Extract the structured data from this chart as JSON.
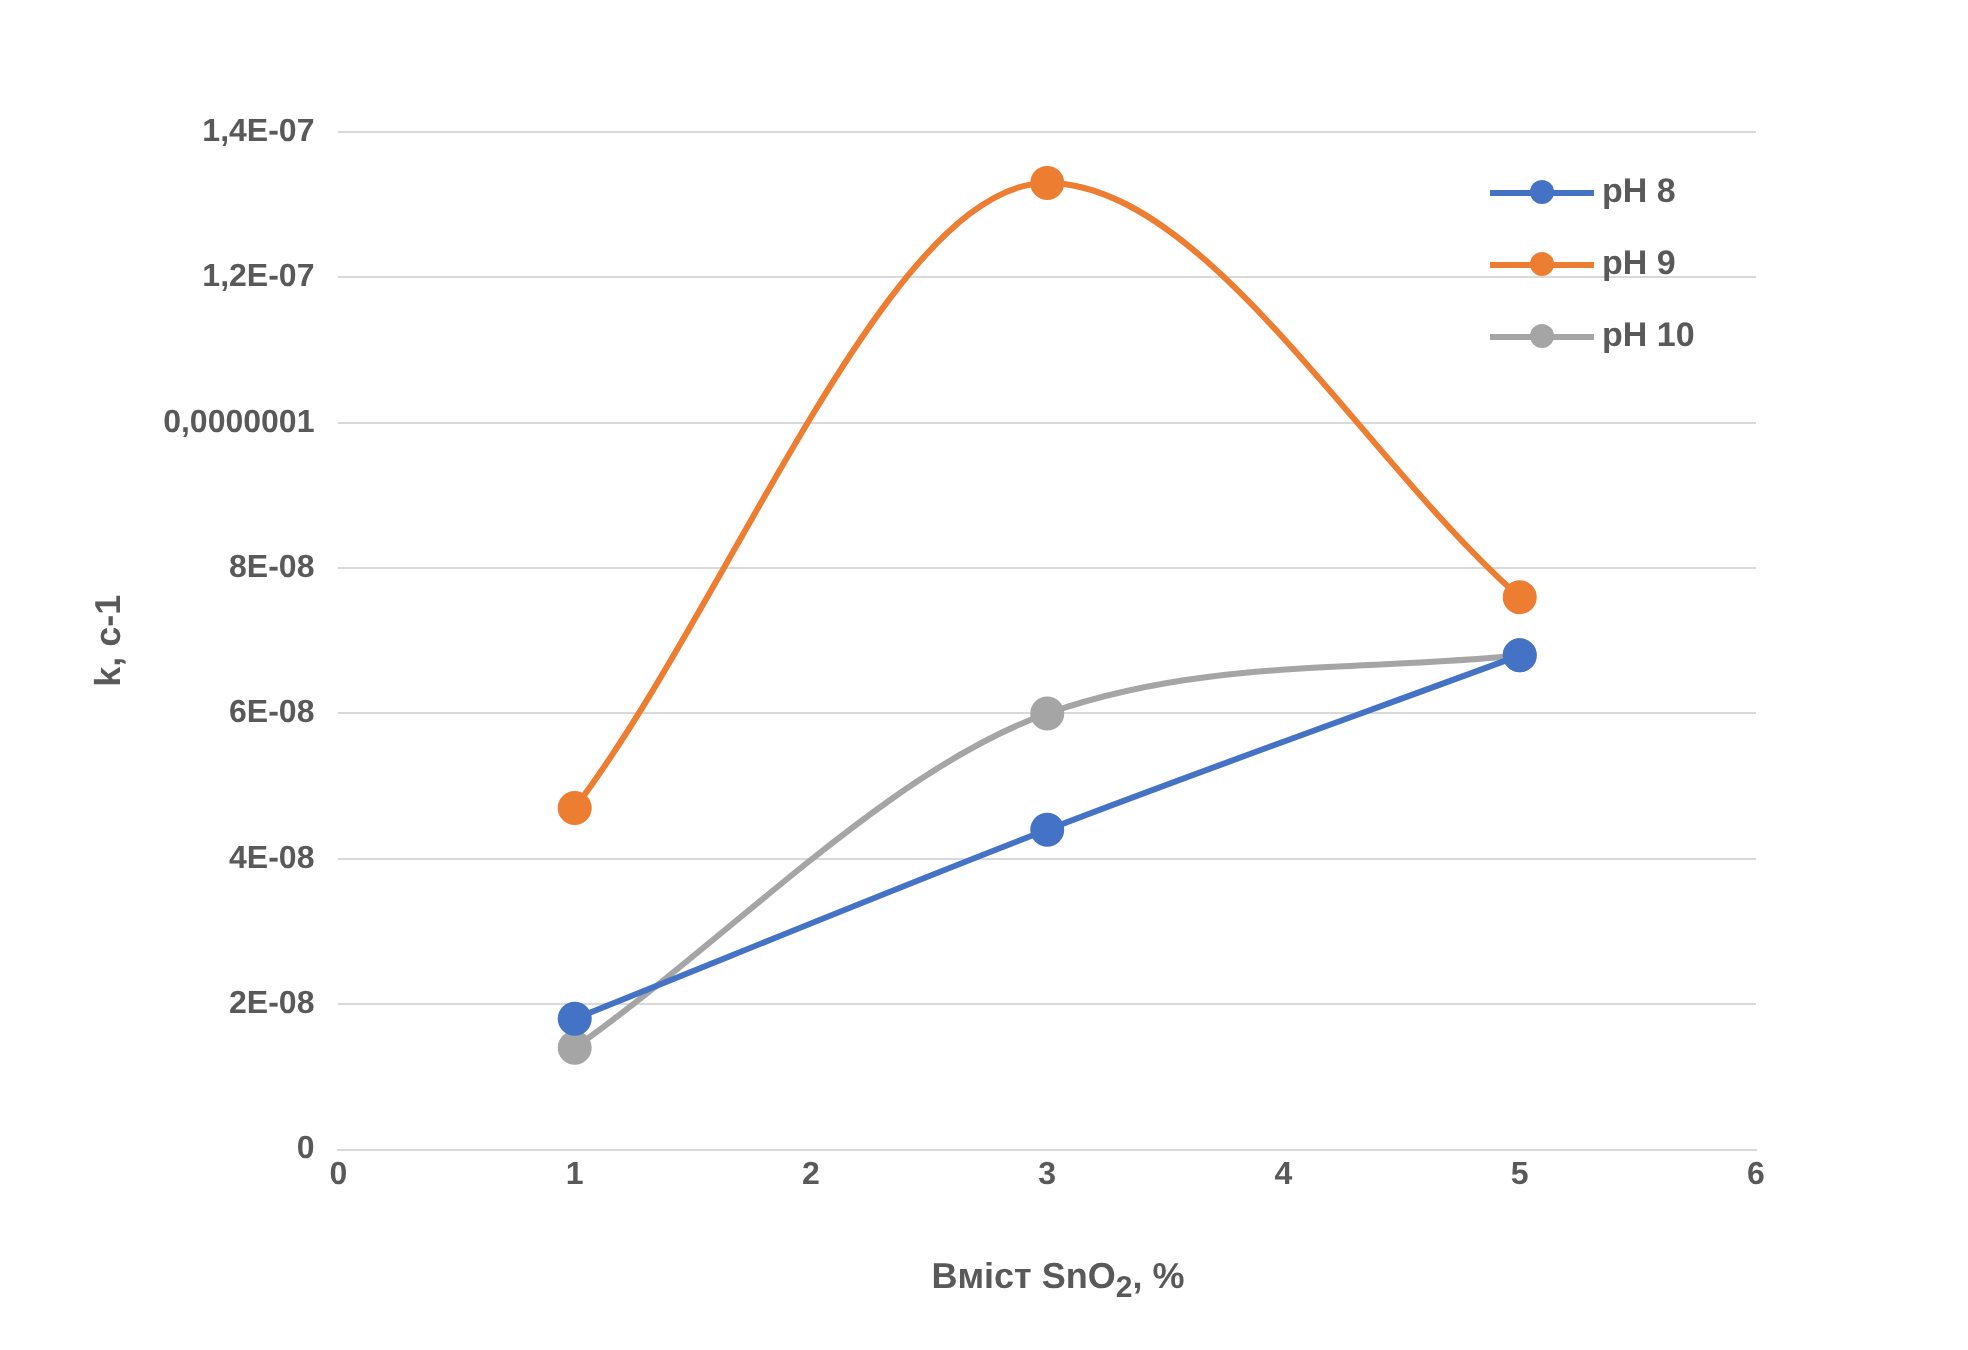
{
  "chart_data": {
    "type": "line",
    "xlabel": "Вміст SnO$_{2}$, %",
    "ylabel": "k, с-1",
    "x": [
      1,
      3,
      5
    ],
    "series": [
      {
        "name": "pH 8",
        "color": "#4472c4",
        "values": [
          1.8e-08,
          4.4e-08,
          6.8e-08
        ]
      },
      {
        "name": "pH 9",
        "color": "#ed7d31",
        "values": [
          4.7e-08,
          1.33e-07,
          7.6e-08
        ]
      },
      {
        "name": "pH 10",
        "color": "#a5a5a5",
        "values": [
          1.4e-08,
          6e-08,
          6.8e-08
        ]
      }
    ],
    "xlim": [
      0,
      6
    ],
    "xticks": [
      0,
      1,
      2,
      3,
      4,
      5,
      6
    ],
    "ylim": [
      0,
      1.4e-07
    ],
    "yticks": [
      0,
      {
        "value": 2e-08,
        "label": "2E-08"
      },
      {
        "value": 4e-08,
        "label": "4E-08"
      },
      {
        "value": 6e-08,
        "label": "6E-08"
      },
      {
        "value": 8e-08,
        "label": "8E-08"
      },
      {
        "value": 1e-07,
        "label": "0,0000001"
      },
      {
        "value": 1.2e-07,
        "label": "1,2E-07"
      },
      {
        "value": 1.4e-07,
        "label": "1,4E-07"
      }
    ],
    "grid": "y",
    "legend": "top right",
    "marker": "circle",
    "line_style": "solid"
  }
}
